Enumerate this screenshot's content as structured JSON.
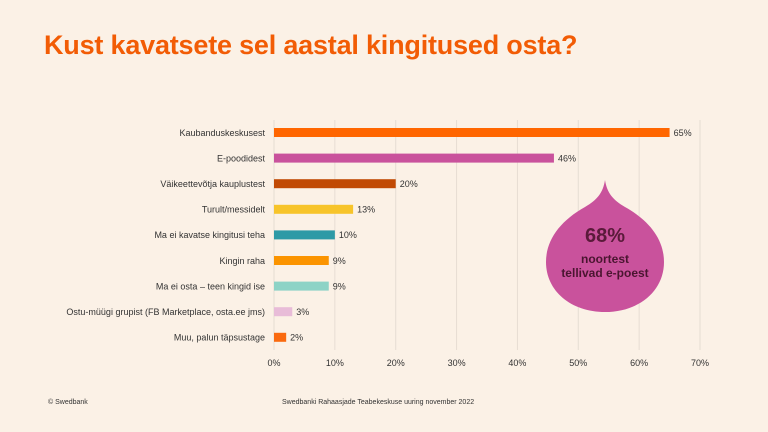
{
  "title": "Kust kavatsete sel aastal kingitused osta?",
  "chart_data": {
    "type": "bar",
    "orientation": "horizontal",
    "title": "Kust kavatsete sel aastal kingitused osta?",
    "categories": [
      "Kaubanduskeskusest",
      "E-poodidest",
      "Väikeettevõtja kauplustest",
      "Turult/messidelt",
      "Ma ei kavatse kingitusi teha",
      "Kingin raha",
      "Ma ei osta – teen kingid ise",
      "Ostu-müügi grupist (FB Marketplace, osta.ee jms)",
      "Muu, palun täpsustage"
    ],
    "values": [
      65,
      46,
      20,
      13,
      10,
      9,
      9,
      3,
      2
    ],
    "value_labels": [
      "65%",
      "46%",
      "20%",
      "13%",
      "10%",
      "9%",
      "9%",
      "3%",
      "2%"
    ],
    "bar_colors": [
      "#ff6600",
      "#c9529c",
      "#c14a04",
      "#f7c42a",
      "#2e9aa6",
      "#fb9400",
      "#8dd3c6",
      "#e8bcd8",
      "#fa6a0f"
    ],
    "xlim": [
      0,
      70
    ],
    "x_ticks": [
      0,
      10,
      20,
      30,
      40,
      50,
      60,
      70
    ],
    "x_tick_labels": [
      "0%",
      "10%",
      "20%",
      "30%",
      "40%",
      "50%",
      "60%",
      "70%"
    ],
    "grid": "vertical"
  },
  "callout": {
    "value": "68%",
    "line1": "noortest",
    "line2": "tellivad e-poest",
    "color": "#c9529c"
  },
  "footer": {
    "left": "© Swedbank",
    "center": "Swedbanki Rahaasjade Teabekeskuse uuring november 2022"
  },
  "colors": {
    "title": "#f25c05",
    "background": "#fbf1e6"
  }
}
